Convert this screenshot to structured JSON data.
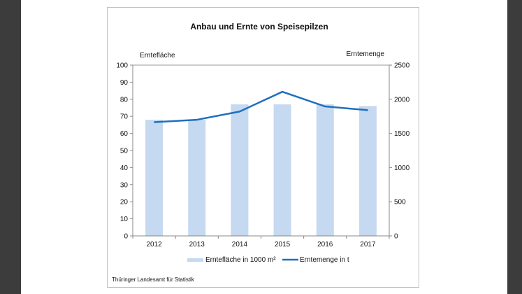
{
  "chart_data": {
    "type": "bar+line",
    "title": "Anbau und Ernte von Speisepilzen",
    "ylabel_left": "Erntefläche",
    "ylabel_right": "Erntemenge",
    "categories": [
      "2012",
      "2013",
      "2014",
      "2015",
      "2016",
      "2017"
    ],
    "ylim_left": [
      0,
      100
    ],
    "yticks_left": [
      0,
      10,
      20,
      30,
      40,
      50,
      60,
      70,
      80,
      90,
      100
    ],
    "ylim_right": [
      0,
      2500
    ],
    "yticks_right": [
      0,
      500,
      1000,
      1500,
      2000,
      2500
    ],
    "grid": false,
    "legend_placement": "bottom",
    "series": [
      {
        "name": "Erntefläche in 1000 m²",
        "type": "bar",
        "axis": "left",
        "color": "#c5d9f1",
        "values": [
          68,
          68,
          77,
          77,
          77,
          76
        ]
      },
      {
        "name": "Erntemenge in t",
        "type": "line",
        "axis": "right",
        "color": "#1f6fbf",
        "values": [
          1665,
          1700,
          1820,
          2110,
          1895,
          1840
        ]
      }
    ],
    "source": "Thüringer Landesamt für Statistik"
  }
}
